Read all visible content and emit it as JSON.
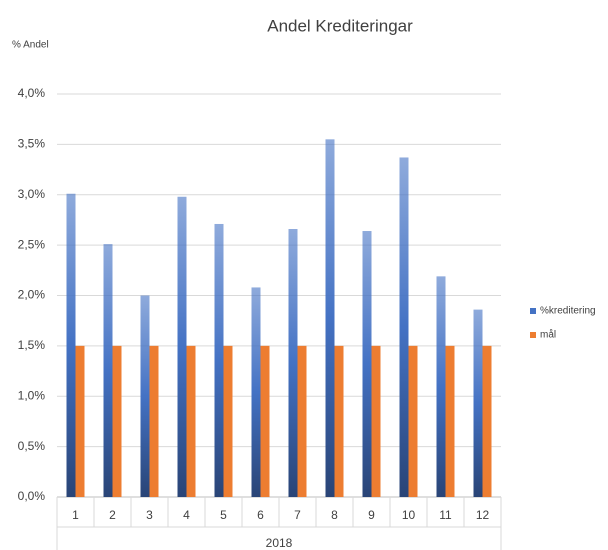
{
  "chart_data": {
    "type": "bar",
    "title": "Andel Krediteringar",
    "ylabel": "% Andel",
    "xlabel": "2018",
    "categories": [
      "1",
      "2",
      "3",
      "4",
      "5",
      "6",
      "7",
      "8",
      "9",
      "10",
      "11",
      "12"
    ],
    "series": [
      {
        "name": "%kreditering",
        "color": "#4472c4",
        "values": [
          3.01,
          2.51,
          2.0,
          2.98,
          2.71,
          2.08,
          2.66,
          3.55,
          2.64,
          3.37,
          2.19,
          1.86
        ]
      },
      {
        "name": "mål",
        "color": "#ed7d31",
        "values": [
          1.5,
          1.5,
          1.5,
          1.5,
          1.5,
          1.5,
          1.5,
          1.5,
          1.5,
          1.5,
          1.5,
          1.5
        ]
      }
    ],
    "ylim": [
      0,
      4.0
    ],
    "yticks": [
      {
        "value": 0,
        "label": "0,0%"
      },
      {
        "value": 0.5,
        "label": "0,5%"
      },
      {
        "value": 1.0,
        "label": "1,0%"
      },
      {
        "value": 1.5,
        "label": "1,5%"
      },
      {
        "value": 2.0,
        "label": "2,0%"
      },
      {
        "value": 2.5,
        "label": "2,5%"
      },
      {
        "value": 3.0,
        "label": "3,0%"
      },
      {
        "value": 3.5,
        "label": "3,5%"
      },
      {
        "value": 4.0,
        "label": "4,0%"
      }
    ],
    "grid": true,
    "legend": "right",
    "gradient": true
  }
}
